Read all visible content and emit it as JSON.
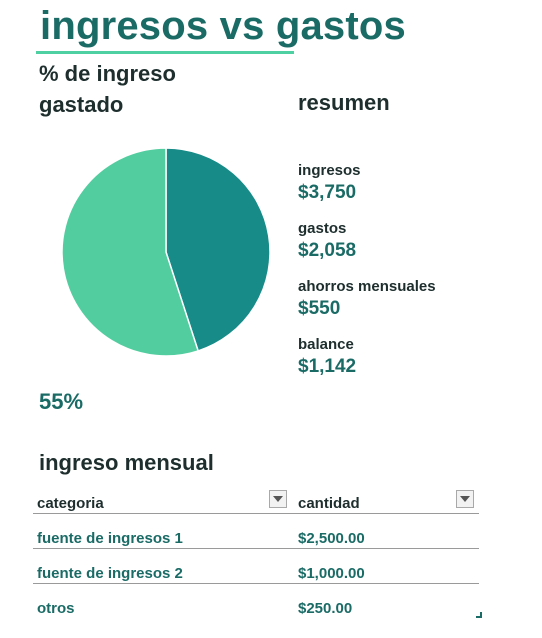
{
  "title": "ingresos vs gastos",
  "pie_heading": "% de ingreso gastado",
  "pie_percentage": "55%",
  "summary_heading": "resumen",
  "summary": [
    {
      "label": "ingresos",
      "value": "$3,750"
    },
    {
      "label": "gastos",
      "value": "$2,058"
    },
    {
      "label": "ahorros mensuales",
      "value": "$550"
    },
    {
      "label": "balance",
      "value": "$1,142"
    }
  ],
  "table_heading": "ingreso mensual",
  "table": {
    "headers": [
      "categoria",
      "cantidad"
    ],
    "rows": [
      [
        "fuente de ingresos 1",
        "$2,500.00"
      ],
      [
        "fuente de ingresos 2",
        "$1,000.00"
      ],
      [
        "otros",
        "$250.00"
      ]
    ]
  },
  "chart_data": {
    "type": "pie",
    "slices": [
      {
        "value": 45,
        "color": "#168b87"
      },
      {
        "value": 55,
        "color": "#52cd9f"
      }
    ]
  },
  "colors": {
    "accent": "#1a6b66",
    "underline": "#4fd0a2"
  }
}
